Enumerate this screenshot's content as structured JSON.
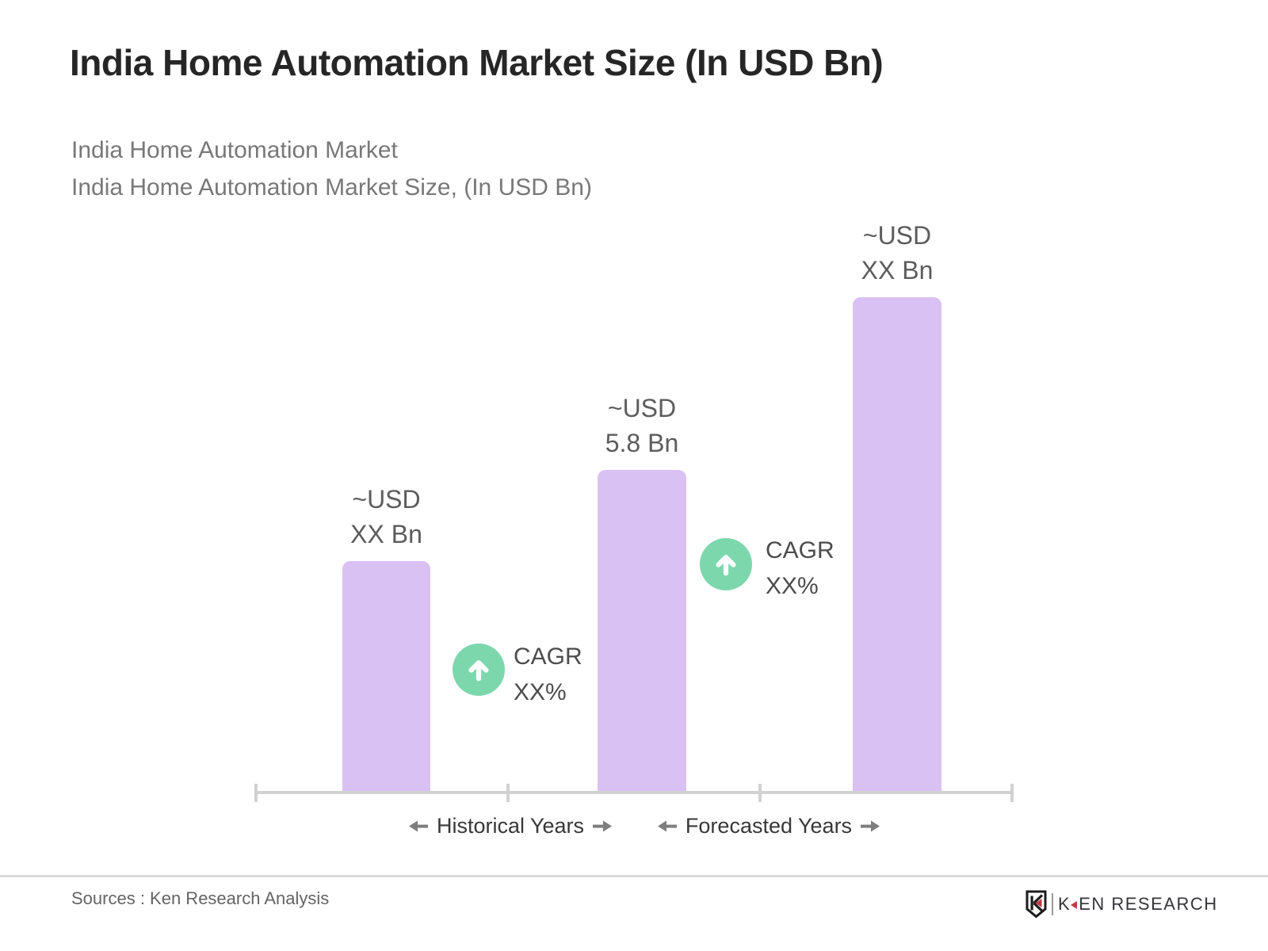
{
  "header": {
    "title": "India Home Automation Market Size (In USD Bn)",
    "subtitle_line1": "India Home Automation Market",
    "subtitle_line2": "India Home Automation Market Size, (In USD Bn)"
  },
  "chart_data": {
    "type": "bar",
    "title": "India Home Automation Market Size (In USD Bn)",
    "unit": "USD Bn",
    "bars": [
      {
        "group": "Historical Years",
        "label_line1": "~USD",
        "label_line2": "XX Bn",
        "value_text": "~USD XX Bn",
        "value_usd_bn": null,
        "relative_height": 0.467
      },
      {
        "group": "Historical Years",
        "label_line1": "~USD",
        "label_line2": "5.8 Bn",
        "value_text": "~USD 5.8 Bn",
        "value_usd_bn": 5.8,
        "relative_height": 0.651
      },
      {
        "group": "Forecasted Years",
        "label_line1": "~USD",
        "label_line2": "XX Bn",
        "value_text": "~USD XX Bn",
        "value_usd_bn": null,
        "relative_height": 1.0
      }
    ],
    "annotations": [
      {
        "icon": "up-arrow-circle-icon",
        "line1": "CAGR",
        "line2": "XX%"
      },
      {
        "icon": "up-arrow-circle-icon",
        "line1": "CAGR",
        "line2": "XX%"
      }
    ],
    "x_axis_groups": [
      "Historical Years",
      "Forecasted Years"
    ],
    "y_axis": "none",
    "legend": "none",
    "grid": false,
    "colors": {
      "bar": "#DAC1F3",
      "annotation_circle": "#7DD7AD",
      "axis": "#D1D1D1"
    }
  },
  "footer": {
    "source": "Sources : Ken Research Analysis",
    "logo": {
      "letter_k": "K",
      "rest": "EN RESEARCH"
    }
  }
}
